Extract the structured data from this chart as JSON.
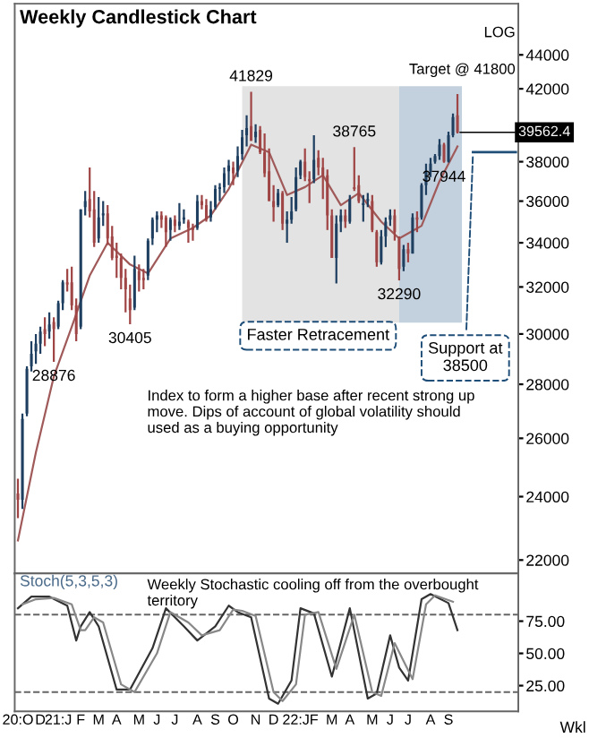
{
  "chart_data": [
    {
      "type": "candlestick",
      "title": "Weekly Candlestick Chart",
      "log": true,
      "tick_labels": "y",
      "xlim": [
        "2020-10-25",
        "2022-12-20"
      ],
      "ylim": [
        21600,
        47200
      ],
      "yticks": [
        22000,
        24000,
        26000,
        28000,
        30000,
        32000,
        34000,
        36000,
        38000,
        {
          "value": 40000,
          "label": null
        },
        42000,
        44000
      ],
      "x": [
        "2020-10-30",
        "2020-11-06",
        "2020-11-13",
        "2020-11-20",
        "2020-11-27",
        "2020-12-04",
        "2020-12-11",
        "2020-12-18",
        "2020-12-25",
        "2021-01-01",
        "2021-01-08",
        "2021-01-15",
        "2021-01-22",
        "2021-01-29",
        "2021-02-05",
        "2021-02-12",
        "2021-02-19",
        "2021-02-26",
        "2021-03-05",
        "2021-03-12",
        "2021-03-19",
        "2021-03-26",
        "2021-04-02",
        "2021-04-09",
        "2021-04-16",
        "2021-04-23",
        "2021-04-30",
        "2021-05-07",
        "2021-05-14",
        "2021-05-21",
        "2021-05-28",
        "2021-06-04",
        "2021-06-11",
        "2021-06-18",
        "2021-06-25",
        "2021-07-02",
        "2021-07-09",
        "2021-07-16",
        "2021-07-23",
        "2021-07-30",
        "2021-08-06",
        "2021-08-13",
        "2021-08-20",
        "2021-08-27",
        "2021-09-03",
        "2021-09-10",
        "2021-09-17",
        "2021-09-24",
        "2021-10-01",
        "2021-10-08",
        "2021-10-15",
        "2021-10-22",
        "2021-10-29",
        "2021-11-05",
        "2021-11-12",
        "2021-11-19",
        "2021-11-26",
        "2021-12-03",
        "2021-12-10",
        "2021-12-17",
        "2021-12-24",
        "2021-12-31",
        "2022-01-07",
        "2022-01-14",
        "2022-01-21",
        "2022-01-28",
        "2022-02-04",
        "2022-02-11",
        "2022-02-18",
        "2022-02-25",
        "2022-03-04",
        "2022-03-11",
        "2022-03-18",
        "2022-03-25",
        "2022-04-01",
        "2022-04-08",
        "2022-04-15",
        "2022-04-22",
        "2022-04-29",
        "2022-05-06",
        "2022-05-13",
        "2022-05-20",
        "2022-05-27",
        "2022-06-03",
        "2022-06-10",
        "2022-06-17",
        "2022-06-24",
        "2022-07-01",
        "2022-07-08",
        "2022-07-15",
        "2022-07-22",
        "2022-07-29",
        "2022-08-05",
        "2022-08-12",
        "2022-08-19",
        "2022-08-26",
        "2022-09-02",
        "2022-09-09",
        "2022-09-16"
      ],
      "ohlc": [
        [
          24100,
          24600,
          23300,
          23900
        ],
        [
          23900,
          26900,
          23600,
          26700
        ],
        [
          26900,
          28700,
          26800,
          28600
        ],
        [
          28700,
          29700,
          28500,
          29200
        ],
        [
          29300,
          30000,
          28800,
          29600
        ],
        [
          29600,
          30300,
          29200,
          30100
        ],
        [
          30200,
          30700,
          29500,
          30000
        ],
        [
          30100,
          30900,
          29800,
          30400
        ],
        [
          30500,
          30700,
          28876,
          30200
        ],
        [
          30300,
          31400,
          30200,
          31300
        ],
        [
          31300,
          32300,
          31000,
          32200
        ],
        [
          32200,
          32800,
          31800,
          32100
        ],
        [
          32200,
          32900,
          31000,
          31200
        ],
        [
          31200,
          31500,
          29700,
          30000
        ],
        [
          30300,
          35600,
          30200,
          35600
        ],
        [
          35700,
          36500,
          35300,
          36000
        ],
        [
          36100,
          37700,
          35200,
          35500
        ],
        [
          35600,
          36500,
          33800,
          34000
        ],
        [
          34200,
          36200,
          34000,
          35200
        ],
        [
          35300,
          36000,
          34800,
          35400
        ],
        [
          35400,
          35800,
          33900,
          34200
        ],
        [
          34300,
          34800,
          33200,
          33300
        ],
        [
          33400,
          34000,
          32400,
          33300
        ],
        [
          33300,
          33500,
          31900,
          32400
        ],
        [
          32400,
          32800,
          30900,
          31900
        ],
        [
          31500,
          32100,
          30405,
          31000
        ],
        [
          31100,
          33400,
          31000,
          32800
        ],
        [
          32700,
          33000,
          31800,
          32300
        ],
        [
          32400,
          32800,
          31900,
          32300
        ],
        [
          32500,
          34200,
          32300,
          34100
        ],
        [
          34200,
          35200,
          33900,
          35100
        ],
        [
          35100,
          35500,
          34500,
          35300
        ],
        [
          35300,
          35500,
          34700,
          35100
        ],
        [
          35200,
          35300,
          33800,
          34500
        ],
        [
          34600,
          35200,
          34100,
          35100
        ],
        [
          35100,
          35300,
          34500,
          34800
        ],
        [
          34800,
          35900,
          34600,
          35000
        ],
        [
          35100,
          35600,
          34900,
          35200
        ],
        [
          35000,
          35100,
          34000,
          34700
        ],
        [
          34700,
          34900,
          34100,
          34600
        ],
        [
          34700,
          36300,
          34600,
          36000
        ],
        [
          36000,
          36300,
          35600,
          35800
        ],
        [
          35800,
          36100,
          35000,
          35100
        ],
        [
          35200,
          36000,
          35000,
          35600
        ],
        [
          35700,
          36800,
          35600,
          36600
        ],
        [
          36600,
          36900,
          36000,
          36700
        ],
        [
          36700,
          37700,
          36400,
          37400
        ],
        [
          37500,
          38100,
          36800,
          37800
        ],
        [
          37700,
          38000,
          36800,
          37400
        ],
        [
          37500,
          38800,
          37200,
          38300
        ],
        [
          38400,
          39700,
          38100,
          39300
        ],
        [
          39400,
          40500,
          38800,
          39800
        ],
        [
          39900,
          41829,
          39100,
          39100
        ],
        [
          39300,
          40000,
          39000,
          39600
        ],
        [
          39700,
          39900,
          38400,
          38500
        ],
        [
          38500,
          39500,
          37200,
          37400
        ],
        [
          37500,
          38700,
          36000,
          36000
        ],
        [
          36000,
          36800,
          35000,
          35700
        ],
        [
          35800,
          36600,
          35700,
          36400
        ],
        [
          36400,
          36500,
          34600,
          34900
        ],
        [
          34900,
          35500,
          34000,
          35100
        ],
        [
          35100,
          36200,
          34900,
          35500
        ],
        [
          35600,
          37700,
          35500,
          37200
        ],
        [
          37300,
          38100,
          37100,
          38000
        ],
        [
          38000,
          38700,
          37000,
          37200
        ],
        [
          37100,
          37500,
          35900,
          37000
        ],
        [
          37100,
          39400,
          36900,
          38100
        ],
        [
          38200,
          38600,
          37300,
          37700
        ],
        [
          37700,
          38200,
          36100,
          37300
        ],
        [
          37300,
          37600,
          34600,
          35300
        ],
        [
          35300,
          35600,
          33300,
          33300
        ],
        [
          33300,
          35300,
          32155,
          34900
        ],
        [
          35000,
          35600,
          34500,
          35300
        ],
        [
          35300,
          35600,
          34700,
          35000
        ],
        [
          35000,
          36300,
          34900,
          36100
        ],
        [
          36700,
          38765,
          36500,
          36600
        ],
        [
          36800,
          37300,
          35900,
          36000
        ],
        [
          35800,
          36300,
          35000,
          35900
        ],
        [
          36000,
          36400,
          35700,
          36100
        ],
        [
          36000,
          36300,
          34500,
          34600
        ],
        [
          34500,
          34600,
          32900,
          33100
        ],
        [
          33100,
          34600,
          33000,
          34300
        ],
        [
          34300,
          35200,
          33800,
          35000
        ],
        [
          35100,
          35600,
          34800,
          35300
        ],
        [
          35300,
          35600,
          34100,
          34500
        ],
        [
          34200,
          34300,
          32290,
          32800
        ],
        [
          32900,
          33900,
          32700,
          33700
        ],
        [
          33700,
          34000,
          33100,
          33500
        ],
        [
          33500,
          35400,
          33500,
          35200
        ],
        [
          35200,
          35500,
          34500,
          35100
        ],
        [
          35200,
          36900,
          35100,
          36800
        ],
        [
          36800,
          37900,
          36300,
          37500
        ],
        [
          37500,
          38200,
          37200,
          37900
        ],
        [
          38000,
          38400,
          37900,
          38300
        ],
        [
          38300,
          39200,
          38100,
          38900
        ],
        [
          38900,
          39000,
          37944,
          38000
        ],
        [
          38000,
          39600,
          37950,
          39400
        ],
        [
          39400,
          40600,
          39300,
          40400
        ],
        [
          40500,
          41700,
          39500,
          39562.4
        ]
      ],
      "series": [
        {
          "type": "line",
          "color": "#a05a5a",
          "x": [
            "2020-10-30",
            "2020-11-27",
            "2020-12-25",
            "2021-01-22",
            "2021-02-19",
            "2021-03-19",
            "2021-04-23",
            "2021-05-21",
            "2021-06-25",
            "2021-07-30",
            "2021-08-27",
            "2021-09-24",
            "2021-10-29",
            "2021-11-26",
            "2021-12-24",
            "2022-01-21",
            "2022-02-18",
            "2022-03-18",
            "2022-04-15",
            "2022-05-20",
            "2022-06-17",
            "2022-07-22",
            "2022-08-19",
            "2022-09-16"
          ],
          "values": [
            22600,
            25500,
            28300,
            30300,
            32500,
            34000,
            33000,
            32600,
            34200,
            34700,
            35300,
            36600,
            38900,
            38500,
            36300,
            36700,
            37300,
            35800,
            36400,
            35000,
            34200,
            34800,
            37000,
            38800
          ]
        }
      ],
      "bands": [
        {
          "axis": "x",
          "from": "2021-10-15",
          "to": "2022-06-17",
          "color": "#e3e3e3"
        },
        {
          "axis": "x",
          "from": "2022-06-17",
          "to": "2022-09-23",
          "color": "#c3d0dd"
        }
      ],
      "ref_lines": [
        {
          "axis": "y",
          "value": 38500,
          "label": "Support at 38500",
          "color": "#1f4e79"
        }
      ],
      "annotations": [
        {
          "text": "41829",
          "x": "2021-10-29",
          "y": 41829
        },
        {
          "text": "38765",
          "x": "2022-04-08",
          "y": 38765
        },
        {
          "text": "37944",
          "x": "2022-08-26",
          "y": 37944
        },
        {
          "text": "32290",
          "x": "2022-06-17",
          "y": 32290
        },
        {
          "text": "30405",
          "x": "2021-04-23",
          "y": 30405
        },
        {
          "text": "28876",
          "x": "2020-12-25",
          "y": 28876
        },
        {
          "text": "39562.4",
          "x": "2022-09-16",
          "y": 39562.4
        },
        "Target @ 41800",
        "Faster Retracement",
        "Index to form a higher base after recent strong up move. Dips of account of global volatility should used as a buying opportunity",
        "LOG"
      ]
    },
    {
      "type": "line",
      "title": "Stoch(5,3,5,3)",
      "xlim": [
        "2020-10-25",
        "2022-12-20"
      ],
      "ylim": [
        5,
        112
      ],
      "yticks": [
        {
          "value": 25,
          "label": "25.00"
        },
        {
          "value": 50,
          "label": "50.00"
        },
        {
          "value": 75,
          "label": "75.00"
        }
      ],
      "xticks": [
        {
          "value": "2020-10-30",
          "label": "20:O"
        },
        {
          "value": "2020-12-04",
          "label": "D"
        },
        {
          "value": "2021-01-01",
          "label": "21:J"
        },
        {
          "value": "2021-02-05",
          "label": "F"
        },
        {
          "value": "2021-03-05",
          "label": "M"
        },
        {
          "value": "2021-04-02",
          "label": "A"
        },
        {
          "value": "2021-05-07",
          "label": "M"
        },
        {
          "value": "2021-06-04",
          "label": "J"
        },
        {
          "value": "2021-07-02",
          "label": "J"
        },
        {
          "value": "2021-08-06",
          "label": "A"
        },
        {
          "value": "2021-09-03",
          "label": "S"
        },
        {
          "value": "2021-10-01",
          "label": "O"
        },
        {
          "value": "2021-11-05",
          "label": "N"
        },
        {
          "value": "2021-12-03",
          "label": "D"
        },
        {
          "value": "2022-01-07",
          "label": "22:J"
        },
        {
          "value": "2022-02-04",
          "label": "F"
        },
        {
          "value": "2022-03-04",
          "label": "M"
        },
        {
          "value": "2022-04-01",
          "label": "A"
        },
        {
          "value": "2022-05-06",
          "label": "M"
        },
        {
          "value": "2022-06-03",
          "label": "J"
        },
        {
          "value": "2022-07-01",
          "label": "J"
        },
        {
          "value": "2022-08-05",
          "label": "A"
        },
        {
          "value": "2022-09-02",
          "label": "S"
        }
      ],
      "series": [
        {
          "color": "#333333",
          "x": [
            "2020-10-30",
            "2020-11-20",
            "2020-12-18",
            "2021-01-15",
            "2021-01-29",
            "2021-02-05",
            "2021-02-19",
            "2021-03-05",
            "2021-04-02",
            "2021-04-23",
            "2021-05-28",
            "2021-06-18",
            "2021-07-16",
            "2021-08-06",
            "2021-09-03",
            "2021-09-24",
            "2021-10-08",
            "2021-10-29",
            "2021-11-26",
            "2021-12-10",
            "2021-12-31",
            "2022-01-14",
            "2022-02-04",
            "2022-03-04",
            "2022-04-01",
            "2022-04-29",
            "2022-05-13",
            "2022-06-03",
            "2022-06-17",
            "2022-07-01",
            "2022-07-22",
            "2022-08-05",
            "2022-09-02",
            "2022-09-16"
          ],
          "values": [
            85,
            94,
            94,
            87,
            60,
            71,
            82,
            71,
            22,
            22,
            54,
            85,
            71,
            60,
            71,
            87,
            82,
            78,
            15,
            11,
            29,
            85,
            81,
            32,
            85,
            15,
            19,
            64,
            39,
            29,
            92,
            96,
            89,
            68
          ]
        },
        {
          "color": "#888888",
          "x": [
            "2020-11-06",
            "2020-11-27",
            "2020-12-25",
            "2021-01-22",
            "2021-02-05",
            "2021-02-12",
            "2021-02-26",
            "2021-03-12",
            "2021-04-09",
            "2021-04-30",
            "2021-06-04",
            "2021-06-25",
            "2021-07-23",
            "2021-08-13",
            "2021-09-10",
            "2021-10-01",
            "2021-10-15",
            "2021-11-05",
            "2021-12-03",
            "2021-12-17",
            "2022-01-07",
            "2022-01-21",
            "2022-02-11",
            "2022-03-11",
            "2022-04-08",
            "2022-05-06",
            "2022-05-20",
            "2022-06-10",
            "2022-06-24",
            "2022-07-08",
            "2022-07-29",
            "2022-08-12",
            "2022-09-09"
          ],
          "values": [
            88,
            92,
            93,
            88,
            68,
            68,
            78,
            74,
            26,
            20,
            50,
            82,
            74,
            64,
            68,
            84,
            83,
            79,
            20,
            13,
            26,
            80,
            82,
            38,
            80,
            20,
            17,
            58,
            44,
            30,
            88,
            95,
            90
          ]
        }
      ],
      "ref_lines": [
        {
          "axis": "y",
          "value": 80,
          "line_style": "dashed",
          "color": "#666666"
        },
        {
          "axis": "y",
          "value": 20,
          "line_style": "dashed",
          "color": "#666666"
        }
      ],
      "annotations": [
        "Weekly Stochastic cooling off from the overbought territory",
        "Wkl"
      ]
    }
  ]
}
